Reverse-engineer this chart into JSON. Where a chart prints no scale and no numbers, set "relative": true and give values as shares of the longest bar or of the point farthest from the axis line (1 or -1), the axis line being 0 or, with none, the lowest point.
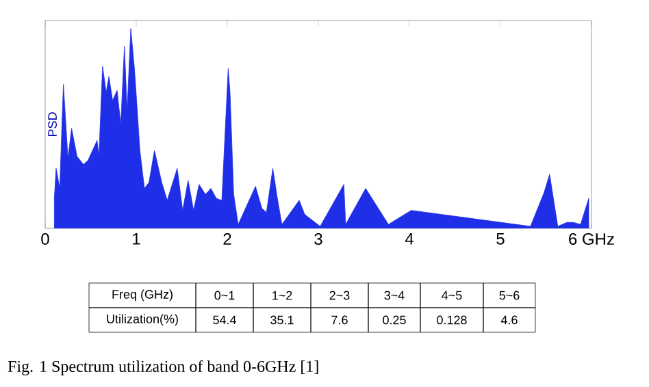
{
  "chart_data": {
    "type": "area",
    "relative": true,
    "ylabel": "PSD",
    "color": "#1f2fe8",
    "x": [
      0.1,
      0.12,
      0.16,
      0.19,
      0.2,
      0.25,
      0.29,
      0.35,
      0.42,
      0.47,
      0.52,
      0.57,
      0.59,
      0.63,
      0.67,
      0.7,
      0.74,
      0.79,
      0.83,
      0.87,
      0.9,
      0.94,
      0.98,
      1.01,
      1.04,
      1.09,
      1.14,
      1.2,
      1.28,
      1.34,
      1.45,
      1.51,
      1.57,
      1.63,
      1.69,
      1.76,
      1.82,
      1.88,
      1.94,
      2.01,
      2.03,
      2.07,
      2.12,
      2.31,
      2.38,
      2.43,
      2.5,
      2.55,
      2.6,
      2.79,
      2.85,
      3.02,
      3.28,
      3.3,
      3.52,
      3.77,
      4.02,
      5.33,
      5.48,
      5.54,
      5.63,
      5.73,
      5.8,
      5.88,
      5.97
    ],
    "values": [
      0.15,
      0.3,
      0.2,
      0.6,
      0.72,
      0.35,
      0.5,
      0.36,
      0.32,
      0.34,
      0.39,
      0.44,
      0.36,
      0.81,
      0.68,
      0.76,
      0.64,
      0.69,
      0.52,
      0.91,
      0.59,
      1.0,
      0.8,
      0.6,
      0.39,
      0.2,
      0.23,
      0.39,
      0.23,
      0.14,
      0.3,
      0.09,
      0.24,
      0.09,
      0.22,
      0.17,
      0.2,
      0.15,
      0.14,
      0.8,
      0.68,
      0.17,
      0.02,
      0.21,
      0.1,
      0.08,
      0.3,
      0.15,
      0.02,
      0.14,
      0.07,
      0.01,
      0.22,
      0.02,
      0.2,
      0.02,
      0.09,
      0.01,
      0.18,
      0.27,
      0.01,
      0.03,
      0.03,
      0.02,
      0.15
    ],
    "xlim": [
      0,
      6
    ],
    "xticks": [
      {
        "value": 0,
        "label": "0"
      },
      {
        "value": 1,
        "label": "1"
      },
      {
        "value": 2,
        "label": "2"
      },
      {
        "value": 3,
        "label": "3"
      },
      {
        "value": 4,
        "label": "4"
      },
      {
        "value": 5,
        "label": "5"
      },
      {
        "value": 6,
        "label": "6 GHz"
      }
    ],
    "annotations": [
      "Freq (GHz)",
      "0~1",
      "1~2",
      "2~3",
      "3~4",
      "4~5",
      "5~6",
      "Utilization(%)",
      "54.4",
      "35.1",
      "7.6",
      "0.25",
      "0.128",
      "4.6",
      "Fig. 1    Spectrum utilization of band 0-6GHz [1]"
    ]
  }
}
